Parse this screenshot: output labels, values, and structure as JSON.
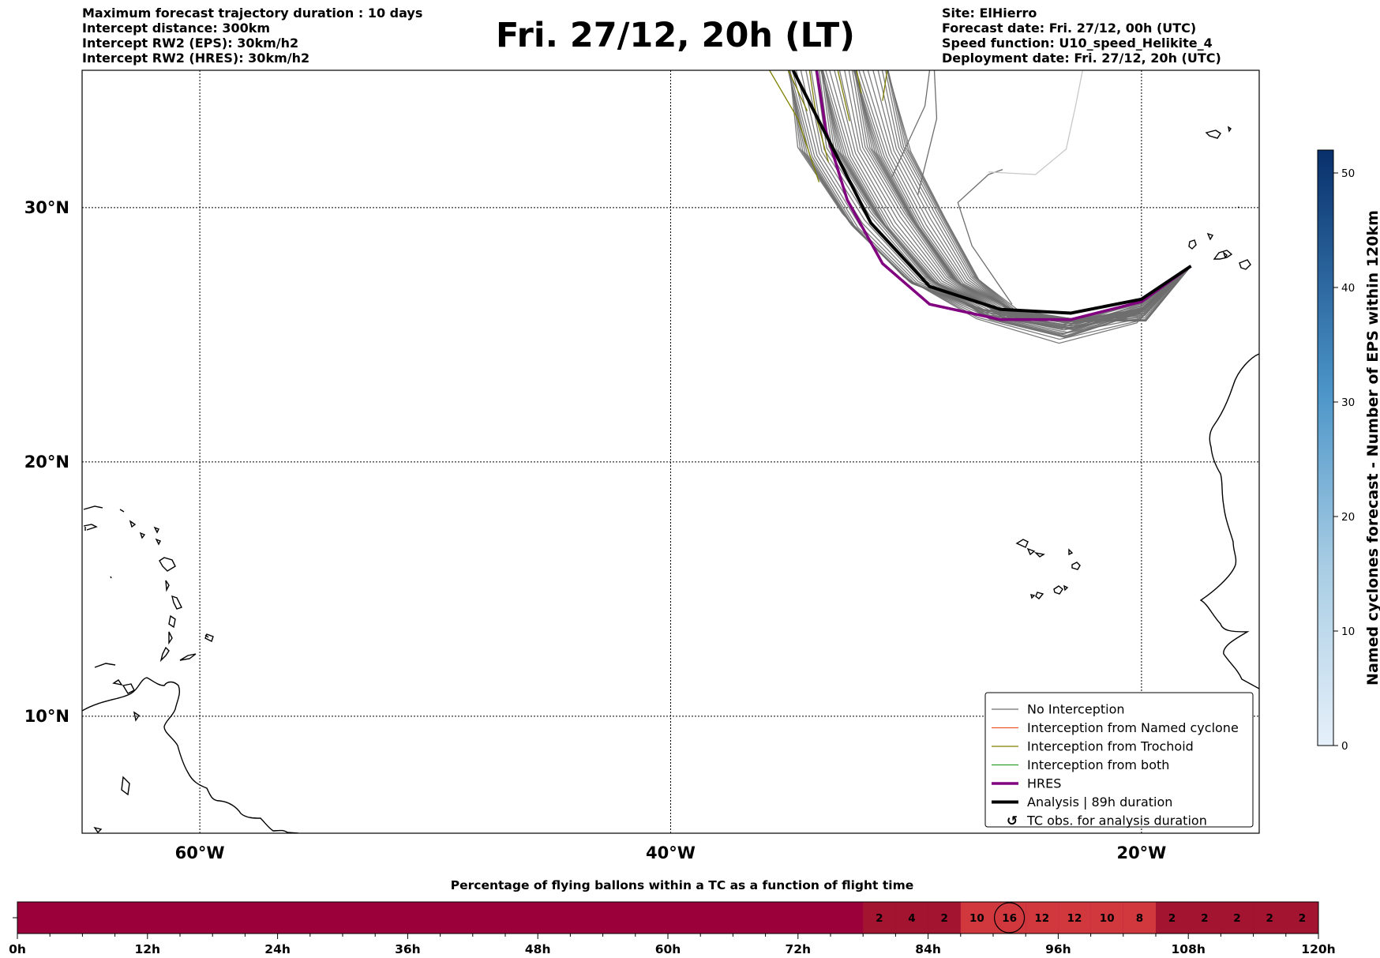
{
  "header": {
    "left": [
      "Maximum forecast trajectory duration : 10 days",
      "Intercept distance: 300km",
      "Intercept RW2 (EPS):  30km/h2",
      "Intercept RW2 (HRES): 30km/h2"
    ],
    "title": "Fri. 27/12, 20h (LT)",
    "right": [
      "Site: ElHierro",
      "Forecast date: Fri. 27/12, 00h (UTC)",
      "Speed function: U10_speed_Helikite_4",
      "Deployment date: Fri. 27/12, 20h (UTC)"
    ]
  },
  "map": {
    "lat_labels": [
      "30°N",
      "20°N",
      "10°N"
    ],
    "lon_labels": [
      "60°W",
      "40°W",
      "20°W"
    ],
    "lat_values": [
      30,
      20,
      10
    ],
    "lon_values": [
      -60,
      -40,
      -20
    ],
    "extent": {
      "lon_min": -65,
      "lon_max": -15,
      "lat_min": 5.4,
      "lat_max": 35.4
    },
    "site": {
      "name": "ElHierro",
      "lon": -17.9,
      "lat": 27.7
    },
    "hres_track": [
      [
        -17.9,
        27.7
      ],
      [
        -20,
        26.3
      ],
      [
        -23,
        25.6
      ],
      [
        -26,
        25.6
      ],
      [
        -29,
        26.2
      ],
      [
        -31,
        27.8
      ],
      [
        -32.5,
        30.3
      ],
      [
        -33.4,
        33
      ],
      [
        -33.8,
        35.4
      ]
    ],
    "analysis_track": [
      [
        -17.9,
        27.7
      ],
      [
        -20,
        26.4
      ],
      [
        -23,
        25.85
      ],
      [
        -26,
        26
      ],
      [
        -29,
        26.9
      ],
      [
        -31.5,
        29.4
      ],
      [
        -33.2,
        32.5
      ],
      [
        -34.8,
        35.4
      ]
    ],
    "colors": {
      "no_interception": "#6e6e6e",
      "named_cyclone": "#f05a28",
      "trochoid": "#808000",
      "both": "#2ca02c",
      "hres": "#800080",
      "analysis": "#000000"
    }
  },
  "legend": {
    "items": [
      {
        "label": "No Interception",
        "style": "no_interception"
      },
      {
        "label": "Interception from Named cyclone",
        "style": "named_cyclone"
      },
      {
        "label": "Interception from Trochoid",
        "style": "trochoid"
      },
      {
        "label": "Interception from both",
        "style": "both"
      },
      {
        "label": "HRES",
        "style": "hres"
      },
      {
        "label": "Analysis | 89h duration",
        "style": "analysis"
      },
      {
        "label": "TC obs. for analysis duration",
        "style": "tc_obs",
        "icon": "cyclone-symbol-icon",
        "glyph": "↺"
      }
    ]
  },
  "colorbar": {
    "label": "Named cyclones forecast - Number of EPS within 120km",
    "ticks": [
      "0",
      "10",
      "20",
      "30",
      "40",
      "50"
    ],
    "min": 0,
    "max": 52,
    "colors": [
      "#e6f0fa",
      "#08306b"
    ]
  },
  "timeline": {
    "title": "Percentage of flying ballons within a TC as a function of flight time",
    "x_labels": [
      "0h",
      "12h",
      "24h",
      "36h",
      "48h",
      "60h",
      "72h",
      "84h",
      "96h",
      "108h",
      "120h"
    ],
    "range_hours": [
      0,
      120
    ],
    "cell_hours": 3,
    "base_color": "#9c003b",
    "cell_color_high": "#d0383e",
    "cell_color_low": "#a31430",
    "cells": [
      {
        "start_h": 78,
        "value": "2"
      },
      {
        "start_h": 81,
        "value": "4"
      },
      {
        "start_h": 84,
        "value": "2"
      },
      {
        "start_h": 87,
        "value": "10"
      },
      {
        "start_h": 90,
        "value": "16",
        "highlight": true
      },
      {
        "start_h": 93,
        "value": "12"
      },
      {
        "start_h": 96,
        "value": "12"
      },
      {
        "start_h": 99,
        "value": "10"
      },
      {
        "start_h": 102,
        "value": "8"
      },
      {
        "start_h": 105,
        "value": "2"
      },
      {
        "start_h": 108,
        "value": "2"
      },
      {
        "start_h": 111,
        "value": "2"
      },
      {
        "start_h": 114,
        "value": "2"
      },
      {
        "start_h": 117,
        "value": "2"
      }
    ]
  }
}
